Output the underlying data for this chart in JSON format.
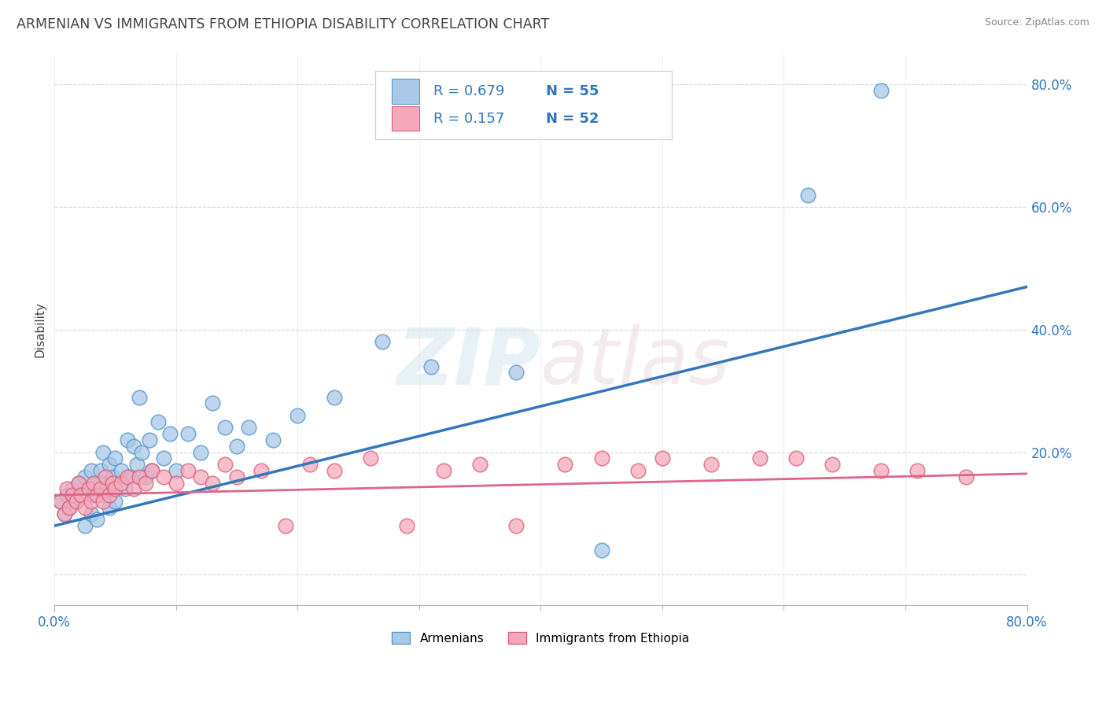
{
  "title": "ARMENIAN VS IMMIGRANTS FROM ETHIOPIA DISABILITY CORRELATION CHART",
  "source_text": "Source: ZipAtlas.com",
  "ylabel": "Disability",
  "watermark_zip": "ZIP",
  "watermark_atlas": "atlas",
  "xlim": [
    0.0,
    0.8
  ],
  "ylim": [
    -0.05,
    0.85
  ],
  "x_tick_labels": [
    "0.0%",
    "80.0%"
  ],
  "y_tick_labels": [
    "",
    "20.0%",
    "40.0%",
    "60.0%",
    "80.0%"
  ],
  "armenian_face_color": "#aac8e8",
  "armenian_edge_color": "#5599cc",
  "ethiopia_face_color": "#f5a8bc",
  "ethiopia_edge_color": "#e0607a",
  "armenian_line_color": "#3377bb",
  "ethiopia_line_color": "#dd6688",
  "legend_R1": "R = 0.679",
  "legend_N1": "N = 55",
  "legend_R2": "R = 0.157",
  "legend_N2": "N = 52",
  "legend_text_color": "#3377bb",
  "armenian_label": "Armenians",
  "ethiopia_label": "Immigrants from Ethiopia",
  "armenian_scatter_x": [
    0.005,
    0.008,
    0.01,
    0.012,
    0.015,
    0.018,
    0.02,
    0.022,
    0.025,
    0.025,
    0.028,
    0.03,
    0.03,
    0.032,
    0.035,
    0.038,
    0.038,
    0.04,
    0.04,
    0.042,
    0.045,
    0.045,
    0.048,
    0.05,
    0.05,
    0.055,
    0.058,
    0.06,
    0.062,
    0.065,
    0.068,
    0.07,
    0.072,
    0.075,
    0.078,
    0.08,
    0.085,
    0.09,
    0.095,
    0.1,
    0.11,
    0.12,
    0.13,
    0.14,
    0.15,
    0.16,
    0.18,
    0.2,
    0.23,
    0.27,
    0.31,
    0.38,
    0.45,
    0.62,
    0.68
  ],
  "armenian_scatter_y": [
    0.12,
    0.1,
    0.13,
    0.11,
    0.14,
    0.12,
    0.15,
    0.13,
    0.08,
    0.16,
    0.14,
    0.1,
    0.17,
    0.13,
    0.09,
    0.15,
    0.17,
    0.13,
    0.2,
    0.14,
    0.11,
    0.18,
    0.16,
    0.12,
    0.19,
    0.17,
    0.14,
    0.22,
    0.16,
    0.21,
    0.18,
    0.29,
    0.2,
    0.16,
    0.22,
    0.17,
    0.25,
    0.19,
    0.23,
    0.17,
    0.23,
    0.2,
    0.28,
    0.24,
    0.21,
    0.24,
    0.22,
    0.26,
    0.29,
    0.38,
    0.34,
    0.33,
    0.04,
    0.62,
    0.79
  ],
  "ethiopia_scatter_x": [
    0.005,
    0.008,
    0.01,
    0.012,
    0.015,
    0.018,
    0.02,
    0.022,
    0.025,
    0.028,
    0.03,
    0.032,
    0.035,
    0.038,
    0.04,
    0.042,
    0.045,
    0.048,
    0.05,
    0.055,
    0.06,
    0.065,
    0.07,
    0.075,
    0.08,
    0.09,
    0.1,
    0.11,
    0.12,
    0.13,
    0.14,
    0.15,
    0.17,
    0.19,
    0.21,
    0.23,
    0.26,
    0.29,
    0.32,
    0.35,
    0.38,
    0.42,
    0.45,
    0.48,
    0.5,
    0.54,
    0.58,
    0.61,
    0.64,
    0.68,
    0.71,
    0.75
  ],
  "ethiopia_scatter_y": [
    0.12,
    0.1,
    0.14,
    0.11,
    0.13,
    0.12,
    0.15,
    0.13,
    0.11,
    0.14,
    0.12,
    0.15,
    0.13,
    0.14,
    0.12,
    0.16,
    0.13,
    0.15,
    0.14,
    0.15,
    0.16,
    0.14,
    0.16,
    0.15,
    0.17,
    0.16,
    0.15,
    0.17,
    0.16,
    0.15,
    0.18,
    0.16,
    0.17,
    0.08,
    0.18,
    0.17,
    0.19,
    0.08,
    0.17,
    0.18,
    0.08,
    0.18,
    0.19,
    0.17,
    0.19,
    0.18,
    0.19,
    0.19,
    0.18,
    0.17,
    0.17,
    0.16
  ],
  "armenian_line_x0": 0.0,
  "armenian_line_y0": 0.08,
  "armenian_line_x1": 0.8,
  "armenian_line_y1": 0.47,
  "ethiopia_line_x0": 0.0,
  "ethiopia_line_y0": 0.13,
  "ethiopia_line_x1": 0.8,
  "ethiopia_line_y1": 0.165,
  "background_color": "#ffffff",
  "grid_color": "#d0d0d0",
  "title_color": "#444444",
  "source_color": "#888888",
  "tick_color": "#3377bb",
  "ytick_color": "#3377bb",
  "figsize": [
    14.06,
    8.92
  ],
  "dpi": 100
}
